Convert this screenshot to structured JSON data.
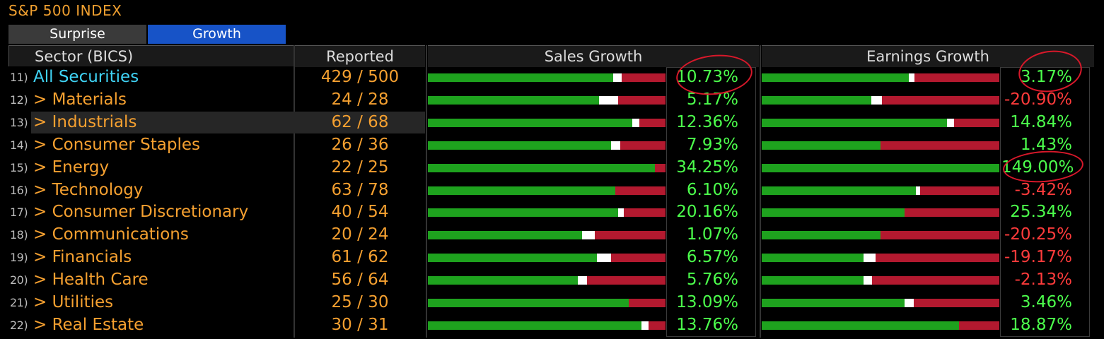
{
  "title": "S&P 500 INDEX",
  "tabs": [
    {
      "label": "Surprise",
      "active": false
    },
    {
      "label": "Growth",
      "active": true
    }
  ],
  "headers": {
    "sector": "Sector (BICS)",
    "reported": "Reported",
    "sales": "Sales Growth",
    "earnings": "Earnings Growth"
  },
  "colors": {
    "positive": "#4cff4c",
    "negative": "#ff3b3b",
    "bar_green": "#1ea21e",
    "bar_red": "#b3192f",
    "orange": "#f5a030",
    "cyan": "#3fd3f5",
    "annotation": "#d8182a"
  },
  "rows": [
    {
      "num": "11)",
      "name": "All Securities",
      "reported": "429  /  500",
      "sales": "10.73%",
      "sales_fill": 0.78,
      "sales_mark": 0.035,
      "earnings": "3.17%",
      "earn_fill": 0.62,
      "earn_mark": 0.025
    },
    {
      "num": "12)",
      "name": "> Materials",
      "reported": "24  /  28",
      "sales": "5.17%",
      "sales_fill": 0.72,
      "sales_mark": 0.08,
      "earnings": "-20.90%",
      "earn_fill": 0.46,
      "earn_mark": 0.045
    },
    {
      "num": "13)",
      "name": "> Industrials",
      "reported": "62  /  68",
      "sales": "12.36%",
      "sales_fill": 0.86,
      "sales_mark": 0.03,
      "earnings": "14.84%",
      "earn_fill": 0.78,
      "earn_mark": 0.03
    },
    {
      "num": "14)",
      "name": "> Consumer Staples",
      "reported": "26  /  36",
      "sales": "7.93%",
      "sales_fill": 0.77,
      "sales_mark": 0.04,
      "earnings": "1.43%",
      "earn_fill": 0.5,
      "earn_mark": 0.0
    },
    {
      "num": "15)",
      "name": "> Energy",
      "reported": "22  /  25",
      "sales": "34.25%",
      "sales_fill": 0.955,
      "sales_mark": 0.0,
      "earnings": "149.00%",
      "earn_fill": 1.0,
      "earn_mark": 0.0
    },
    {
      "num": "16)",
      "name": "> Technology",
      "reported": "63  /  78",
      "sales": "6.10%",
      "sales_fill": 0.79,
      "sales_mark": 0.0,
      "earnings": "-3.42%",
      "earn_fill": 0.65,
      "earn_mark": 0.015
    },
    {
      "num": "17)",
      "name": "> Consumer Discretionary",
      "reported": "40  /  54",
      "sales": "20.16%",
      "sales_fill": 0.8,
      "sales_mark": 0.025,
      "earnings": "25.34%",
      "earn_fill": 0.6,
      "earn_mark": 0.0
    },
    {
      "num": "18)",
      "name": "> Communications",
      "reported": "20  /  24",
      "sales": "1.07%",
      "sales_fill": 0.65,
      "sales_mark": 0.055,
      "earnings": "-20.25%",
      "earn_fill": 0.5,
      "earn_mark": 0.0
    },
    {
      "num": "19)",
      "name": "> Financials",
      "reported": "61  /  62",
      "sales": "6.57%",
      "sales_fill": 0.71,
      "sales_mark": 0.06,
      "earnings": "-19.17%",
      "earn_fill": 0.43,
      "earn_mark": 0.05
    },
    {
      "num": "20)",
      "name": "> Health Care",
      "reported": "56  /  64",
      "sales": "5.76%",
      "sales_fill": 0.63,
      "sales_mark": 0.04,
      "earnings": "-2.13%",
      "earn_fill": 0.43,
      "earn_mark": 0.035
    },
    {
      "num": "21)",
      "name": "> Utilities",
      "reported": "25  /  30",
      "sales": "13.09%",
      "sales_fill": 0.845,
      "sales_mark": 0.0,
      "earnings": "3.46%",
      "earn_fill": 0.6,
      "earn_mark": 0.04
    },
    {
      "num": "22)",
      "name": "> Real Estate",
      "reported": "30  /  31",
      "sales": "13.76%",
      "sales_fill": 0.9,
      "sales_mark": 0.03,
      "earnings": "18.87%",
      "earn_fill": 0.83,
      "earn_mark": 0.0
    }
  ]
}
